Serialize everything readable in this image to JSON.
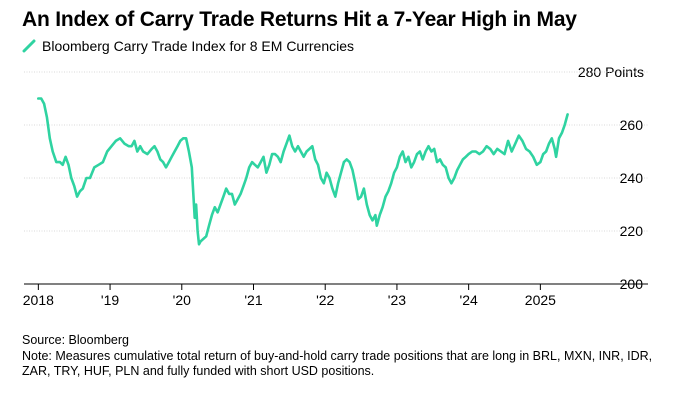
{
  "title": "An Index of Carry Trade Returns Hit a 7-Year High in May",
  "chart_data": {
    "type": "line",
    "title": "An Index of Carry Trade Returns Hit a 7-Year High in May",
    "series": [
      {
        "name": "Bloomberg Carry Trade Index for 8 EM Currencies",
        "color": "#2fd3a1",
        "points": [
          [
            2018.0,
            270
          ],
          [
            2018.04,
            270
          ],
          [
            2018.08,
            268
          ],
          [
            2018.12,
            263
          ],
          [
            2018.16,
            255
          ],
          [
            2018.2,
            250
          ],
          [
            2018.25,
            246
          ],
          [
            2018.3,
            246
          ],
          [
            2018.34,
            245
          ],
          [
            2018.38,
            248
          ],
          [
            2018.42,
            245
          ],
          [
            2018.46,
            240
          ],
          [
            2018.5,
            237
          ],
          [
            2018.54,
            233
          ],
          [
            2018.58,
            235
          ],
          [
            2018.62,
            236
          ],
          [
            2018.67,
            240
          ],
          [
            2018.72,
            240
          ],
          [
            2018.78,
            244
          ],
          [
            2018.84,
            245
          ],
          [
            2018.9,
            246
          ],
          [
            2018.96,
            250
          ],
          [
            2019.02,
            252
          ],
          [
            2019.08,
            254
          ],
          [
            2019.14,
            255
          ],
          [
            2019.2,
            253
          ],
          [
            2019.26,
            252
          ],
          [
            2019.3,
            252
          ],
          [
            2019.34,
            254
          ],
          [
            2019.38,
            250
          ],
          [
            2019.42,
            252
          ],
          [
            2019.46,
            250
          ],
          [
            2019.52,
            249
          ],
          [
            2019.58,
            251
          ],
          [
            2019.62,
            252
          ],
          [
            2019.66,
            250
          ],
          [
            2019.7,
            247
          ],
          [
            2019.74,
            246
          ],
          [
            2019.78,
            244
          ],
          [
            2019.82,
            246
          ],
          [
            2019.86,
            248
          ],
          [
            2019.9,
            250
          ],
          [
            2019.94,
            252
          ],
          [
            2019.98,
            254
          ],
          [
            2020.02,
            255
          ],
          [
            2020.06,
            255
          ],
          [
            2020.1,
            250
          ],
          [
            2020.14,
            244
          ],
          [
            2020.18,
            225
          ],
          [
            2020.2,
            230
          ],
          [
            2020.22,
            220
          ],
          [
            2020.24,
            215
          ],
          [
            2020.26,
            216
          ],
          [
            2020.3,
            217
          ],
          [
            2020.34,
            218
          ],
          [
            2020.38,
            222
          ],
          [
            2020.42,
            226
          ],
          [
            2020.46,
            229
          ],
          [
            2020.5,
            227
          ],
          [
            2020.54,
            230
          ],
          [
            2020.58,
            233
          ],
          [
            2020.62,
            236
          ],
          [
            2020.66,
            234
          ],
          [
            2020.7,
            234
          ],
          [
            2020.74,
            230
          ],
          [
            2020.78,
            232
          ],
          [
            2020.82,
            234
          ],
          [
            2020.86,
            237
          ],
          [
            2020.9,
            240
          ],
          [
            2020.94,
            244
          ],
          [
            2020.98,
            246
          ],
          [
            2021.02,
            245
          ],
          [
            2021.06,
            244
          ],
          [
            2021.1,
            246
          ],
          [
            2021.14,
            248
          ],
          [
            2021.18,
            242
          ],
          [
            2021.22,
            245
          ],
          [
            2021.26,
            249
          ],
          [
            2021.3,
            249
          ],
          [
            2021.34,
            248
          ],
          [
            2021.38,
            246
          ],
          [
            2021.42,
            250
          ],
          [
            2021.46,
            253
          ],
          [
            2021.5,
            256
          ],
          [
            2021.54,
            252
          ],
          [
            2021.58,
            250
          ],
          [
            2021.62,
            252
          ],
          [
            2021.66,
            250
          ],
          [
            2021.7,
            248
          ],
          [
            2021.74,
            250
          ],
          [
            2021.78,
            251
          ],
          [
            2021.82,
            252
          ],
          [
            2021.86,
            247
          ],
          [
            2021.9,
            245
          ],
          [
            2021.94,
            240
          ],
          [
            2021.98,
            238
          ],
          [
            2022.02,
            242
          ],
          [
            2022.06,
            240
          ],
          [
            2022.1,
            236
          ],
          [
            2022.14,
            233
          ],
          [
            2022.18,
            238
          ],
          [
            2022.22,
            242
          ],
          [
            2022.26,
            246
          ],
          [
            2022.3,
            247
          ],
          [
            2022.34,
            246
          ],
          [
            2022.38,
            243
          ],
          [
            2022.42,
            238
          ],
          [
            2022.46,
            232
          ],
          [
            2022.5,
            233
          ],
          [
            2022.54,
            236
          ],
          [
            2022.58,
            230
          ],
          [
            2022.62,
            226
          ],
          [
            2022.66,
            224
          ],
          [
            2022.7,
            226
          ],
          [
            2022.72,
            222
          ],
          [
            2022.76,
            226
          ],
          [
            2022.8,
            229
          ],
          [
            2022.84,
            233
          ],
          [
            2022.88,
            235
          ],
          [
            2022.92,
            238
          ],
          [
            2022.96,
            242
          ],
          [
            2023.0,
            244
          ],
          [
            2023.04,
            248
          ],
          [
            2023.08,
            250
          ],
          [
            2023.12,
            246
          ],
          [
            2023.16,
            248
          ],
          [
            2023.2,
            244
          ],
          [
            2023.24,
            246
          ],
          [
            2023.28,
            249
          ],
          [
            2023.32,
            250
          ],
          [
            2023.36,
            247
          ],
          [
            2023.4,
            250
          ],
          [
            2023.44,
            252
          ],
          [
            2023.48,
            250
          ],
          [
            2023.52,
            251
          ],
          [
            2023.56,
            246
          ],
          [
            2023.6,
            247
          ],
          [
            2023.64,
            245
          ],
          [
            2023.68,
            244
          ],
          [
            2023.72,
            240
          ],
          [
            2023.76,
            238
          ],
          [
            2023.8,
            240
          ],
          [
            2023.84,
            243
          ],
          [
            2023.88,
            245
          ],
          [
            2023.92,
            247
          ],
          [
            2023.96,
            248
          ],
          [
            2024.0,
            249
          ],
          [
            2024.05,
            250
          ],
          [
            2024.1,
            250
          ],
          [
            2024.15,
            249
          ],
          [
            2024.2,
            250
          ],
          [
            2024.25,
            252
          ],
          [
            2024.3,
            251
          ],
          [
            2024.35,
            249
          ],
          [
            2024.4,
            251
          ],
          [
            2024.45,
            250
          ],
          [
            2024.5,
            249
          ],
          [
            2024.55,
            254
          ],
          [
            2024.6,
            250
          ],
          [
            2024.65,
            253
          ],
          [
            2024.7,
            256
          ],
          [
            2024.75,
            254
          ],
          [
            2024.8,
            251
          ],
          [
            2024.85,
            250
          ],
          [
            2024.9,
            248
          ],
          [
            2024.95,
            245
          ],
          [
            2025.0,
            246
          ],
          [
            2025.04,
            249
          ],
          [
            2025.08,
            250
          ],
          [
            2025.12,
            253
          ],
          [
            2025.16,
            255
          ],
          [
            2025.2,
            251
          ],
          [
            2025.22,
            248
          ],
          [
            2025.26,
            255
          ],
          [
            2025.3,
            257
          ],
          [
            2025.34,
            260
          ],
          [
            2025.38,
            264
          ]
        ]
      }
    ],
    "x_ticks": [
      {
        "value": 2018,
        "label": "2018"
      },
      {
        "value": 2019,
        "label": "'19"
      },
      {
        "value": 2020,
        "label": "'20"
      },
      {
        "value": 2021,
        "label": "'21"
      },
      {
        "value": 2022,
        "label": "'22"
      },
      {
        "value": 2023,
        "label": "'23"
      },
      {
        "value": 2024,
        "label": "'24"
      },
      {
        "value": 2025,
        "label": "2025"
      }
    ],
    "y_ticks": [
      {
        "value": 280,
        "label": "280 Points"
      },
      {
        "value": 260,
        "label": "260"
      },
      {
        "value": 240,
        "label": "240"
      },
      {
        "value": 220,
        "label": "220"
      },
      {
        "value": 200,
        "label": "200"
      }
    ],
    "xlim": [
      2017.8,
      2025.72
    ],
    "ylim": [
      200,
      280
    ],
    "grid": true,
    "legend_position": "top-left",
    "y_axis_side": "right"
  },
  "footer": {
    "source": "Source: Bloomberg",
    "note": "Note: Measures cumulative total return of buy-and-hold carry trade positions that are long in BRL, MXN, INR, IDR, ZAR, TRY, HUF, PLN and fully funded with short USD positions."
  }
}
